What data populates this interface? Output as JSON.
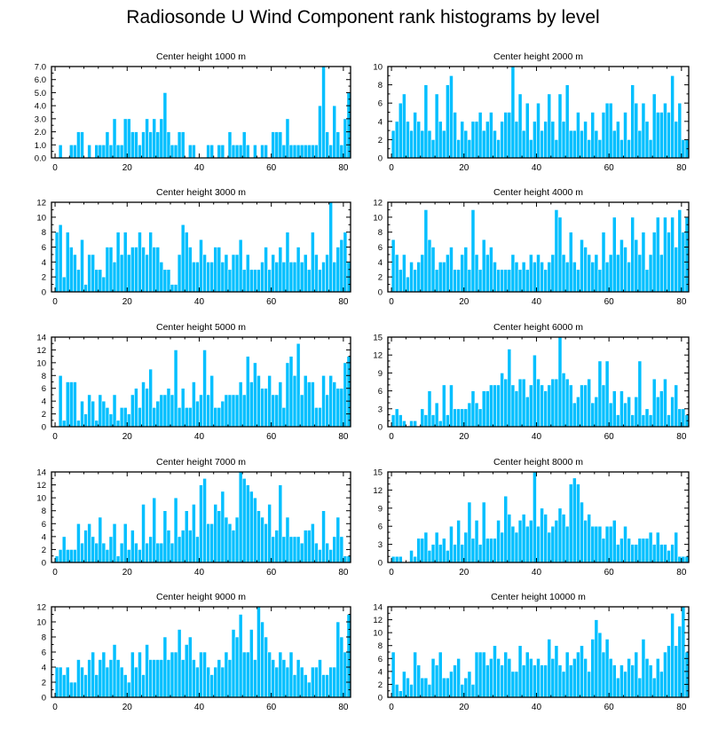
{
  "title": "Radiosonde U Wind Component rank histograms by level",
  "colors": {
    "bar_fill": "#00BFFF",
    "bar_stroke": "#ffffff",
    "axis": "#000000"
  },
  "chart_data": [
    {
      "type": "bar",
      "title": "Center height 1000 m",
      "xlabel": "",
      "ylabel": "",
      "xlim": [
        -1,
        82
      ],
      "ylim": [
        0,
        7
      ],
      "yticks": [
        0,
        1,
        2,
        3,
        4,
        5,
        6,
        7
      ],
      "ytick_labels": [
        "0.0",
        "1.0",
        "2.0",
        "3.0",
        "4.0",
        "5.0",
        "6.0",
        "7.0"
      ],
      "xticks": [
        0,
        20,
        40,
        60,
        80
      ],
      "xtick_labels": [
        "0",
        "20",
        "40",
        "60",
        "80"
      ],
      "x_start": 0,
      "values": [
        0,
        1,
        0,
        0,
        1,
        1,
        2,
        2,
        0,
        1,
        0,
        1,
        1,
        1,
        2,
        1,
        3,
        1,
        1,
        3,
        3,
        2,
        2,
        1,
        2,
        3,
        2,
        3,
        2,
        3,
        5,
        2,
        1,
        1,
        2,
        2,
        0,
        1,
        1,
        0,
        0,
        0,
        1,
        1,
        0,
        1,
        1,
        0,
        2,
        1,
        1,
        1,
        2,
        1,
        0,
        1,
        0,
        1,
        1,
        0,
        2,
        2,
        2,
        1,
        3,
        1,
        1,
        1,
        1,
        1,
        1,
        1,
        1,
        4,
        7,
        2,
        1,
        4,
        2,
        1,
        3,
        5
      ]
    },
    {
      "type": "bar",
      "title": "Center height 2000 m",
      "xlabel": "",
      "ylabel": "",
      "xlim": [
        -1,
        82
      ],
      "ylim": [
        0,
        10
      ],
      "yticks": [
        0,
        2,
        4,
        6,
        8,
        10
      ],
      "ytick_labels": [
        "0",
        "2",
        "4",
        "6",
        "8",
        "10"
      ],
      "xticks": [
        0,
        20,
        40,
        60,
        80
      ],
      "xtick_labels": [
        "0",
        "20",
        "40",
        "60",
        "80"
      ],
      "x_start": 0,
      "values": [
        3,
        4,
        6,
        7,
        4,
        3,
        5,
        4,
        3,
        8,
        3,
        2,
        7,
        4,
        3,
        8,
        9,
        5,
        2,
        4,
        3,
        2,
        4,
        4,
        5,
        3,
        4,
        5,
        3,
        2,
        4,
        5,
        5,
        10,
        4,
        7,
        3,
        6,
        2,
        4,
        6,
        3,
        4,
        7,
        4,
        2,
        7,
        4,
        8,
        3,
        3,
        5,
        3,
        4,
        2,
        5,
        3,
        2,
        5,
        6,
        6,
        3,
        4,
        2,
        5,
        2,
        8,
        6,
        3,
        6,
        4,
        2,
        7,
        5,
        5,
        6,
        5,
        9,
        4,
        6,
        2,
        2
      ]
    },
    {
      "type": "bar",
      "title": "Center height 3000 m",
      "xlabel": "",
      "ylabel": "",
      "xlim": [
        -1,
        82
      ],
      "ylim": [
        0,
        12
      ],
      "yticks": [
        0,
        2,
        4,
        6,
        8,
        10,
        12
      ],
      "ytick_labels": [
        "0",
        "2",
        "4",
        "6",
        "8",
        "10",
        "12"
      ],
      "xticks": [
        0,
        20,
        40,
        60,
        80
      ],
      "xtick_labels": [
        "0",
        "20",
        "40",
        "60",
        "80"
      ],
      "x_start": 0,
      "values": [
        8,
        9,
        2,
        8,
        6,
        5,
        3,
        7,
        1,
        5,
        5,
        3,
        3,
        2,
        6,
        6,
        4,
        8,
        5,
        8,
        5,
        6,
        6,
        8,
        6,
        5,
        8,
        6,
        6,
        4,
        3,
        3,
        1,
        1,
        5,
        9,
        8,
        6,
        4,
        4,
        7,
        5,
        4,
        4,
        6,
        6,
        4,
        5,
        3,
        5,
        5,
        7,
        3,
        5,
        3,
        3,
        3,
        4,
        6,
        3,
        5,
        4,
        6,
        4,
        8,
        4,
        4,
        6,
        4,
        5,
        3,
        8,
        5,
        3,
        4,
        5,
        12,
        4,
        6,
        7,
        8,
        4
      ]
    },
    {
      "type": "bar",
      "title": "Center height 4000 m",
      "xlabel": "",
      "ylabel": "",
      "xlim": [
        -1,
        82
      ],
      "ylim": [
        0,
        12
      ],
      "yticks": [
        0,
        2,
        4,
        6,
        8,
        10,
        12
      ],
      "ytick_labels": [
        "0",
        "2",
        "4",
        "6",
        "8",
        "10",
        "12"
      ],
      "xticks": [
        0,
        20,
        40,
        60,
        80
      ],
      "xtick_labels": [
        "0",
        "20",
        "40",
        "60",
        "80"
      ],
      "x_start": 0,
      "values": [
        7,
        5,
        3,
        5,
        2,
        4,
        3,
        4,
        5,
        11,
        7,
        6,
        3,
        4,
        4,
        5,
        6,
        3,
        3,
        5,
        6,
        3,
        11,
        5,
        3,
        7,
        5,
        6,
        4,
        3,
        3,
        3,
        3,
        5,
        4,
        3,
        4,
        3,
        5,
        4,
        5,
        4,
        3,
        4,
        5,
        11,
        10,
        5,
        4,
        8,
        4,
        3,
        7,
        6,
        5,
        4,
        5,
        3,
        8,
        4,
        5,
        10,
        5,
        7,
        6,
        4,
        10,
        7,
        5,
        8,
        3,
        5,
        8,
        10,
        5,
        10,
        8,
        10,
        6,
        11,
        8,
        10
      ]
    },
    {
      "type": "bar",
      "title": "Center height 5000 m",
      "xlabel": "",
      "ylabel": "",
      "xlim": [
        -1,
        82
      ],
      "ylim": [
        0,
        14
      ],
      "yticks": [
        0,
        2,
        4,
        6,
        8,
        10,
        12,
        14
      ],
      "ytick_labels": [
        "0",
        "2",
        "4",
        "6",
        "8",
        "10",
        "12",
        "14"
      ],
      "xticks": [
        0,
        20,
        40,
        60,
        80
      ],
      "xtick_labels": [
        "0",
        "20",
        "40",
        "60",
        "80"
      ],
      "x_start": 0,
      "values": [
        0,
        8,
        1,
        7,
        7,
        7,
        1,
        4,
        2,
        5,
        4,
        1,
        5,
        4,
        3,
        2,
        5,
        1,
        3,
        3,
        2,
        5,
        6,
        3,
        7,
        6,
        9,
        3,
        4,
        5,
        5,
        6,
        5,
        12,
        3,
        6,
        3,
        3,
        7,
        4,
        5,
        12,
        5,
        8,
        3,
        3,
        4,
        5,
        5,
        5,
        5,
        7,
        5,
        11,
        7,
        10,
        8,
        6,
        6,
        8,
        5,
        5,
        7,
        3,
        10,
        11,
        8,
        13,
        5,
        8,
        7,
        7,
        3,
        3,
        8,
        5,
        8,
        7,
        6,
        6,
        10,
        11
      ]
    },
    {
      "type": "bar",
      "title": "Center height 6000 m",
      "xlabel": "",
      "ylabel": "",
      "xlim": [
        -1,
        82
      ],
      "ylim": [
        0,
        15
      ],
      "yticks": [
        0,
        3,
        6,
        9,
        12,
        15
      ],
      "ytick_labels": [
        "0",
        "3",
        "6",
        "9",
        "12",
        "15"
      ],
      "xticks": [
        0,
        20,
        40,
        60,
        80
      ],
      "xtick_labels": [
        "0",
        "20",
        "40",
        "60",
        "80"
      ],
      "x_start": 0,
      "values": [
        2,
        3,
        2,
        1,
        0,
        1,
        1,
        0,
        3,
        2,
        6,
        2,
        4,
        1,
        7,
        2,
        7,
        3,
        3,
        3,
        3,
        4,
        6,
        4,
        3,
        6,
        6,
        7,
        7,
        7,
        9,
        8,
        13,
        7,
        6,
        8,
        8,
        5,
        7,
        12,
        8,
        7,
        6,
        7,
        8,
        8,
        15,
        9,
        8,
        7,
        4,
        5,
        7,
        7,
        8,
        4,
        5,
        11,
        7,
        11,
        4,
        6,
        2,
        6,
        4,
        5,
        2,
        5,
        11,
        2,
        3,
        2,
        8,
        5,
        6,
        8,
        2,
        5,
        7,
        3,
        3,
        2
      ]
    },
    {
      "type": "bar",
      "title": "Center height 7000 m",
      "xlabel": "",
      "ylabel": "",
      "xlim": [
        -1,
        82
      ],
      "ylim": [
        0,
        14
      ],
      "yticks": [
        0,
        2,
        4,
        6,
        8,
        10,
        12,
        14
      ],
      "ytick_labels": [
        "0",
        "2",
        "4",
        "6",
        "8",
        "10",
        "12",
        "14"
      ],
      "xticks": [
        0,
        20,
        40,
        60,
        80
      ],
      "xtick_labels": [
        "0",
        "20",
        "40",
        "60",
        "80"
      ],
      "x_start": 0,
      "values": [
        1,
        2,
        4,
        2,
        2,
        2,
        6,
        3,
        5,
        6,
        4,
        3,
        7,
        3,
        2,
        4,
        6,
        1,
        3,
        6,
        2,
        5,
        3,
        2,
        9,
        3,
        4,
        10,
        3,
        3,
        8,
        5,
        3,
        10,
        4,
        5,
        8,
        5,
        9,
        4,
        12,
        13,
        6,
        6,
        9,
        8,
        11,
        7,
        6,
        5,
        7,
        14,
        13,
        12,
        11,
        10,
        8,
        7,
        6,
        9,
        4,
        5,
        12,
        4,
        7,
        4,
        4,
        4,
        3,
        5,
        5,
        6,
        3,
        2,
        8,
        3,
        2,
        4,
        7,
        4,
        1,
        1
      ]
    },
    {
      "type": "bar",
      "title": "Center height 8000 m",
      "xlabel": "",
      "ylabel": "",
      "xlim": [
        -1,
        82
      ],
      "ylim": [
        0,
        15
      ],
      "yticks": [
        0,
        3,
        6,
        9,
        12,
        15
      ],
      "ytick_labels": [
        "0",
        "3",
        "6",
        "9",
        "12",
        "15"
      ],
      "xticks": [
        0,
        20,
        40,
        60,
        80
      ],
      "xtick_labels": [
        "0",
        "20",
        "40",
        "60",
        "80"
      ],
      "x_start": 0,
      "values": [
        1,
        1,
        1,
        0,
        0,
        2,
        1,
        4,
        4,
        5,
        2,
        3,
        5,
        3,
        4,
        2,
        6,
        3,
        7,
        3,
        5,
        10,
        4,
        7,
        3,
        10,
        4,
        4,
        4,
        7,
        5,
        11,
        8,
        6,
        5,
        7,
        8,
        6,
        7,
        15,
        6,
        9,
        8,
        5,
        6,
        7,
        9,
        8,
        6,
        13,
        14,
        13,
        10,
        7,
        8,
        6,
        6,
        6,
        4,
        6,
        6,
        7,
        3,
        4,
        6,
        4,
        3,
        3,
        4,
        4,
        4,
        5,
        3,
        5,
        3,
        3,
        2,
        3,
        5,
        1,
        1,
        1
      ]
    },
    {
      "type": "bar",
      "title": "Center height 9000 m",
      "xlabel": "",
      "ylabel": "",
      "xlim": [
        -1,
        82
      ],
      "ylim": [
        0,
        12
      ],
      "yticks": [
        0,
        2,
        4,
        6,
        8,
        10,
        12
      ],
      "ytick_labels": [
        "0",
        "2",
        "4",
        "6",
        "8",
        "10",
        "12"
      ],
      "xticks": [
        0,
        20,
        40,
        60,
        80
      ],
      "xtick_labels": [
        "0",
        "20",
        "40",
        "60",
        "80"
      ],
      "x_start": 0,
      "values": [
        4,
        4,
        3,
        4,
        2,
        2,
        5,
        4,
        3,
        5,
        6,
        3,
        5,
        6,
        4,
        5,
        7,
        5,
        4,
        3,
        2,
        6,
        4,
        6,
        3,
        7,
        5,
        5,
        5,
        5,
        8,
        5,
        6,
        6,
        9,
        5,
        7,
        8,
        5,
        4,
        6,
        6,
        4,
        3,
        4,
        5,
        4,
        6,
        5,
        9,
        8,
        11,
        6,
        6,
        9,
        5,
        12,
        10,
        8,
        6,
        5,
        4,
        6,
        5,
        4,
        6,
        3,
        5,
        4,
        3,
        2,
        4,
        4,
        5,
        3,
        3,
        4,
        4,
        10,
        8,
        6,
        11
      ]
    },
    {
      "type": "bar",
      "title": "Center height 10000 m",
      "xlabel": "",
      "ylabel": "",
      "xlim": [
        -1,
        82
      ],
      "ylim": [
        0,
        14
      ],
      "yticks": [
        0,
        2,
        4,
        6,
        8,
        10,
        12,
        14
      ],
      "ytick_labels": [
        "0",
        "2",
        "4",
        "6",
        "8",
        "10",
        "12",
        "14"
      ],
      "xticks": [
        0,
        20,
        40,
        60,
        80
      ],
      "xtick_labels": [
        "0",
        "20",
        "40",
        "60",
        "80"
      ],
      "x_start": 0,
      "values": [
        7,
        2,
        1,
        4,
        3,
        2,
        7,
        5,
        3,
        3,
        2,
        6,
        5,
        7,
        3,
        3,
        4,
        5,
        6,
        2,
        3,
        4,
        2,
        7,
        7,
        7,
        5,
        6,
        8,
        6,
        5,
        7,
        6,
        4,
        4,
        8,
        5,
        7,
        6,
        5,
        6,
        5,
        5,
        9,
        6,
        8,
        5,
        4,
        7,
        5,
        6,
        7,
        8,
        6,
        4,
        9,
        12,
        10,
        7,
        9,
        6,
        5,
        3,
        5,
        4,
        6,
        5,
        7,
        3,
        9,
        6,
        5,
        3,
        6,
        4,
        7,
        8,
        13,
        8,
        11,
        14,
        7
      ]
    }
  ]
}
